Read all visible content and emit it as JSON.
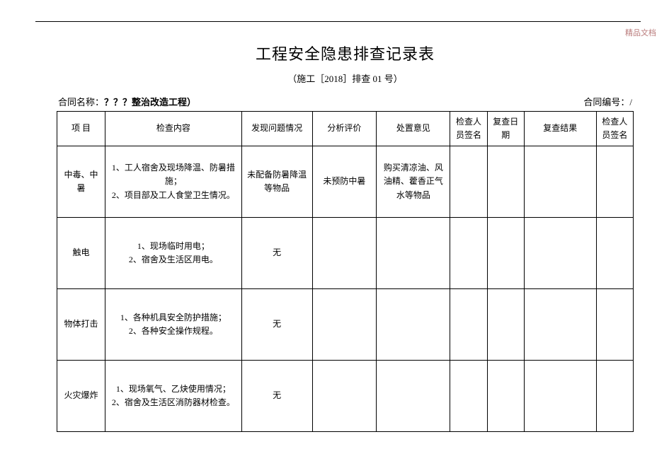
{
  "watermark": "精品文档",
  "title": "工程安全隐患排查记录表",
  "subtitle": "（施工［2018］排查 01 号）",
  "meta": {
    "contract_name_label": "合同名称：",
    "contract_name_value": "？？？整治改造工程）",
    "contract_no_label": "合同编号：",
    "contract_no_value": "/"
  },
  "headers": {
    "item": "项  目",
    "content": "检查内容",
    "issue": "发现问题情况",
    "eval": "分析评价",
    "action": "处置意见",
    "sign1": "检查人员签名",
    "date": "复查日期",
    "result": "复查结果",
    "sign2": "检查人员签名"
  },
  "rows": [
    {
      "item": "中毒、中暑",
      "content": "1、工人宿舍及现场降温、防暑措施；\n2、项目部及工人食堂卫生情况。",
      "issue": "未配备防暑降温等物品",
      "eval": "未预防中暑",
      "action": "购买清凉油、风油精、藿香正气水等物品",
      "sign1": "",
      "date": "",
      "result": "",
      "sign2": ""
    },
    {
      "item": "触电",
      "content": "1、现场临时用电；\n2、宿舍及生活区用电。",
      "issue": "无",
      "eval": "",
      "action": "",
      "sign1": "",
      "date": "",
      "result": "",
      "sign2": ""
    },
    {
      "item": "物体打击",
      "content": "1、各种机具安全防护措施；\n2、各种安全操作规程。",
      "issue": "无",
      "eval": "",
      "action": "",
      "sign1": "",
      "date": "",
      "result": "",
      "sign2": ""
    },
    {
      "item": "火灾爆炸",
      "content": "1、现场氧气、乙炔使用情况；\n2、宿舍及生活区消防器材检查。",
      "issue": "无",
      "eval": "",
      "action": "",
      "sign1": "",
      "date": "",
      "result": "",
      "sign2": ""
    }
  ]
}
